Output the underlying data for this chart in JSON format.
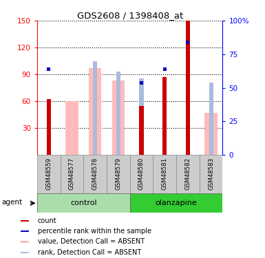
{
  "title": "GDS2608 / 1398408_at",
  "samples": [
    "GSM48559",
    "GSM48577",
    "GSM48578",
    "GSM48579",
    "GSM48580",
    "GSM48581",
    "GSM48582",
    "GSM48583"
  ],
  "red_bars": [
    62,
    0,
    0,
    0,
    55,
    87,
    150,
    0
  ],
  "blue_bars": [
    65,
    0,
    0,
    0,
    55,
    65,
    85,
    0
  ],
  "pink_bars": [
    0,
    60,
    97,
    83,
    0,
    0,
    0,
    47
  ],
  "lightblue_bars": [
    0,
    0,
    70,
    62,
    57,
    0,
    85,
    54
  ],
  "ylim_left": [
    0,
    150
  ],
  "ylim_right": [
    0,
    100
  ],
  "yticks_left": [
    30,
    60,
    90,
    120,
    150
  ],
  "yticks_right": [
    0,
    25,
    50,
    75,
    100
  ],
  "yticklabels_right": [
    "0",
    "25",
    "50",
    "75",
    "100%"
  ],
  "color_red": "#cc0000",
  "color_blue": "#0000bb",
  "color_pink": "#ffbbbb",
  "color_lightblue": "#aabbdd",
  "control_color": "#aaddaa",
  "olanzapine_color": "#33cc33",
  "sample_box_color": "#cccccc"
}
